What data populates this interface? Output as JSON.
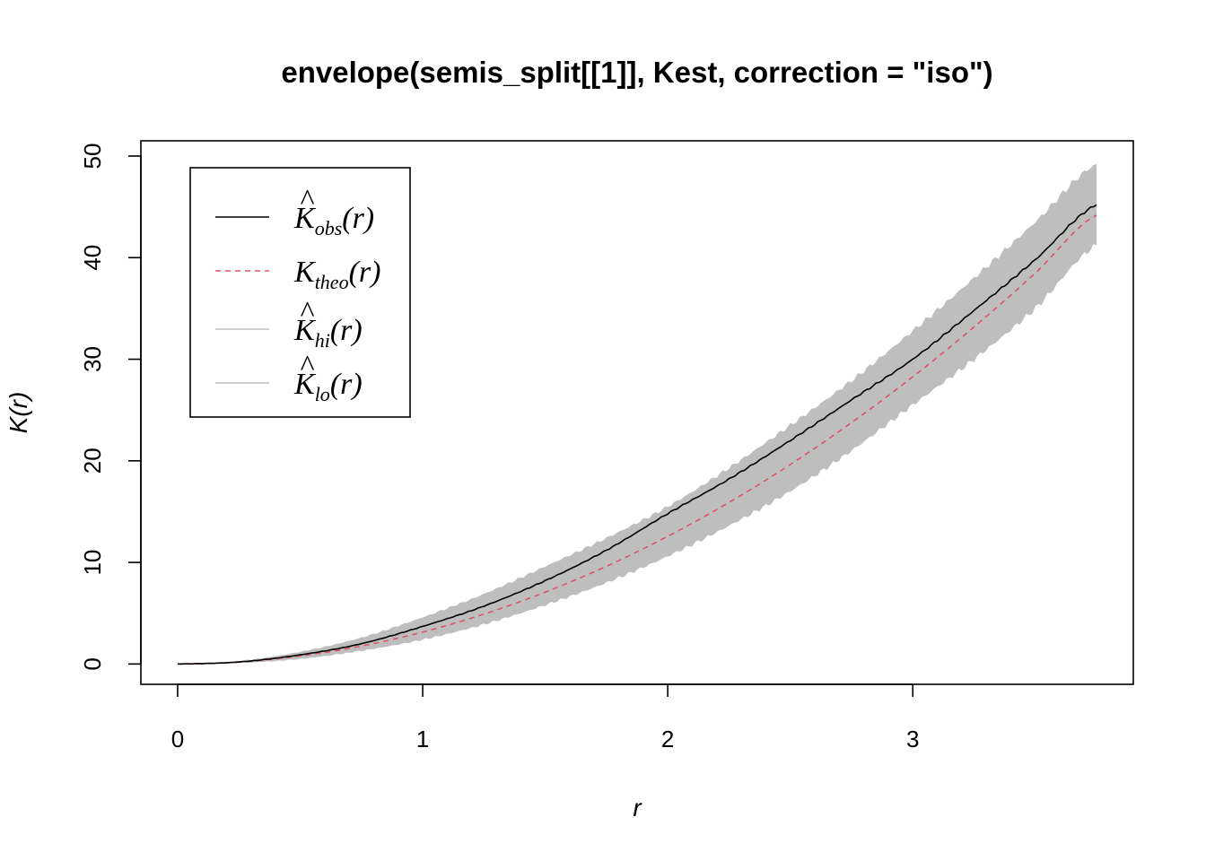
{
  "chart_data": {
    "type": "line",
    "title": "envelope(semis_split[[1]], Kest, correction = \"iso\")",
    "xlabel": "r",
    "ylabel": "K(r)",
    "xlim": [
      -0.15,
      3.9
    ],
    "ylim": [
      -2,
      51.5
    ],
    "xticks": [
      0,
      1,
      2,
      3
    ],
    "yticks": [
      0,
      10,
      20,
      30,
      40,
      50
    ],
    "grid": false,
    "legend_position": "top-left",
    "legend": [
      {
        "base": "K",
        "sub": "obs",
        "hat": true,
        "suffix": "(r)",
        "color": "#000000",
        "dash": "solid"
      },
      {
        "base": "K",
        "sub": "theo",
        "hat": false,
        "suffix": "(r)",
        "color": "#DF536B",
        "dash": "dashed"
      },
      {
        "base": "K",
        "sub": "hi",
        "hat": true,
        "suffix": "(r)",
        "color": "#BEBEBE",
        "dash": "solid"
      },
      {
        "base": "K",
        "sub": "lo",
        "hat": true,
        "suffix": "(r)",
        "color": "#BEBEBE",
        "dash": "solid"
      }
    ],
    "r": [
      0,
      0.25,
      0.5,
      0.75,
      1.0,
      1.25,
      1.5,
      1.75,
      2.0,
      2.25,
      2.5,
      2.75,
      3.0,
      3.25,
      3.5,
      3.75
    ],
    "series": [
      {
        "name": "obs",
        "color": "#000000",
        "values": [
          0,
          0.2,
          0.9,
          2.0,
          3.7,
          5.7,
          8.2,
          11.2,
          14.8,
          18.2,
          22.0,
          26.0,
          30.0,
          34.8,
          39.8,
          45.2
        ]
      },
      {
        "name": "theo",
        "color": "#DF536B",
        "values": [
          0,
          0.2,
          0.79,
          1.77,
          3.14,
          4.91,
          7.07,
          9.62,
          12.57,
          15.9,
          19.63,
          23.76,
          28.27,
          33.18,
          38.48,
          44.18
        ]
      },
      {
        "name": "hi",
        "color": "#BEBEBE",
        "values": [
          0,
          0.3,
          1.2,
          2.6,
          4.6,
          6.9,
          9.6,
          12.4,
          15.5,
          19.3,
          23.5,
          27.9,
          32.8,
          38.0,
          43.5,
          49.2
        ]
      },
      {
        "name": "lo",
        "color": "#BEBEBE",
        "values": [
          0,
          0.1,
          0.5,
          1.3,
          2.4,
          3.9,
          5.8,
          8.0,
          10.6,
          13.6,
          17.0,
          21.0,
          25.5,
          30.0,
          35.0,
          41.2
        ]
      }
    ]
  }
}
